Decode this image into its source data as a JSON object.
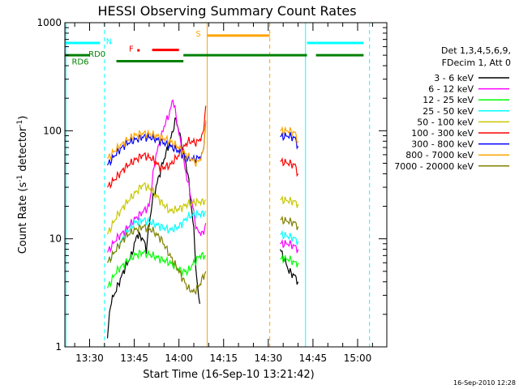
{
  "chart_data": {
    "type": "line",
    "title": "HESSI Observing Summary Count Rates",
    "xlabel": "Start Time (16-Sep-10 13:21:42)",
    "ylabel_main": "Count Rate (s",
    "ylabel_sup1": "-1",
    "ylabel_mid": " detector",
    "ylabel_sup2": "-1",
    "ylabel_end": ")",
    "y_scale": "log",
    "ylim": [
      1,
      1000
    ],
    "xlim_minutes": [
      -8.3,
      99.8
    ],
    "x_ticks": [
      {
        "label": "13:30",
        "minute": 0
      },
      {
        "label": "13:45",
        "minute": 15
      },
      {
        "label": "14:00",
        "minute": 30
      },
      {
        "label": "14:15",
        "minute": 45
      },
      {
        "label": "14:30",
        "minute": 60
      },
      {
        "label": "14:45",
        "minute": 75
      },
      {
        "label": "15:00",
        "minute": 90
      }
    ],
    "y_ticks": [
      {
        "label": "1",
        "value": 1
      },
      {
        "label": "10",
        "value": 10
      },
      {
        "label": "100",
        "value": 100
      },
      {
        "label": "1000",
        "value": 1000
      }
    ],
    "legend": {
      "placement": "right",
      "header1": "Det 1,3,4,5,6,9,",
      "header2": "FDecim 1, Att 0"
    },
    "series": [
      {
        "name": "3 - 6 keV",
        "color": "#000000",
        "points": [
          [
            6,
            1.2
          ],
          [
            7,
            2.5
          ],
          [
            10,
            4
          ],
          [
            12,
            5.5
          ],
          [
            14,
            7
          ],
          [
            16,
            11
          ],
          [
            18,
            10
          ],
          [
            19,
            8
          ],
          [
            21,
            22
          ],
          [
            24,
            45
          ],
          [
            27,
            80
          ],
          [
            29,
            130
          ],
          [
            31,
            75
          ],
          [
            33,
            40
          ],
          [
            35,
            12
          ],
          [
            36,
            4
          ],
          [
            37,
            2.5
          ]
        ],
        "points2": [
          [
            64,
            8
          ],
          [
            67,
            5
          ],
          [
            69,
            4.5
          ],
          [
            70,
            4
          ]
        ]
      },
      {
        "name": "6 - 12 keV",
        "color": "#ff00ff",
        "points": [
          [
            6,
            7.5
          ],
          [
            9,
            10
          ],
          [
            12,
            12
          ],
          [
            15,
            15
          ],
          [
            18,
            18
          ],
          [
            20,
            20
          ],
          [
            22,
            55
          ],
          [
            25,
            110
          ],
          [
            27,
            150
          ],
          [
            28,
            200
          ],
          [
            30,
            95
          ],
          [
            32,
            45
          ],
          [
            34,
            25
          ],
          [
            36,
            12
          ],
          [
            38,
            11
          ],
          [
            39,
            14
          ]
        ],
        "points2": [
          [
            64,
            9
          ],
          [
            67,
            9
          ],
          [
            69,
            8.5
          ],
          [
            70,
            8
          ]
        ]
      },
      {
        "name": "12 - 25 keV",
        "color": "#00ff00",
        "points": [
          [
            6,
            3.5
          ],
          [
            9,
            5
          ],
          [
            12,
            6
          ],
          [
            15,
            7
          ],
          [
            18,
            7.5
          ],
          [
            21,
            7
          ],
          [
            24,
            6.5
          ],
          [
            27,
            6
          ],
          [
            29,
            5.5
          ],
          [
            31,
            5
          ],
          [
            33,
            5
          ],
          [
            35,
            6
          ],
          [
            37,
            7
          ],
          [
            39,
            7
          ]
        ],
        "points2": [
          [
            64,
            6.5
          ],
          [
            67,
            6.5
          ],
          [
            69,
            6
          ],
          [
            70,
            6
          ]
        ]
      },
      {
        "name": "25 - 50 keV",
        "color": "#00ffff",
        "points": [
          [
            6,
            6
          ],
          [
            9,
            8
          ],
          [
            12,
            11
          ],
          [
            15,
            14
          ],
          [
            18,
            15
          ],
          [
            21,
            14
          ],
          [
            24,
            13
          ],
          [
            27,
            12
          ],
          [
            30,
            13
          ],
          [
            33,
            16
          ],
          [
            36,
            17
          ],
          [
            38,
            17
          ],
          [
            39,
            18
          ]
        ],
        "points2": [
          [
            64,
            11
          ],
          [
            67,
            10.5
          ],
          [
            69,
            10
          ],
          [
            70,
            9.5
          ]
        ]
      },
      {
        "name": "50 - 100 keV",
        "color": "#c8c800",
        "points": [
          [
            6,
            11
          ],
          [
            9,
            16
          ],
          [
            12,
            21
          ],
          [
            15,
            26
          ],
          [
            18,
            32
          ],
          [
            21,
            28
          ],
          [
            24,
            22
          ],
          [
            27,
            18
          ],
          [
            30,
            19
          ],
          [
            33,
            21
          ],
          [
            36,
            22
          ],
          [
            38,
            22
          ],
          [
            39,
            23
          ]
        ],
        "points2": [
          [
            64,
            23
          ],
          [
            67,
            22.5
          ],
          [
            69,
            22
          ],
          [
            70,
            21
          ]
        ]
      },
      {
        "name": "100 - 300 keV",
        "color": "#ff0000",
        "points": [
          [
            6,
            30
          ],
          [
            9,
            37
          ],
          [
            12,
            46
          ],
          [
            15,
            53
          ],
          [
            18,
            60
          ],
          [
            21,
            55
          ],
          [
            24,
            45
          ],
          [
            27,
            48
          ],
          [
            30,
            60
          ],
          [
            33,
            80
          ],
          [
            36,
            78
          ],
          [
            38,
            90
          ],
          [
            39,
            170
          ]
        ],
        "points2": [
          [
            64,
            52
          ],
          [
            67,
            50
          ],
          [
            69,
            48
          ],
          [
            70,
            40
          ]
        ]
      },
      {
        "name": "300 - 800 keV",
        "color": "#0000ff",
        "points": [
          [
            6,
            48
          ],
          [
            9,
            62
          ],
          [
            12,
            75
          ],
          [
            15,
            82
          ],
          [
            18,
            88
          ],
          [
            21,
            86
          ],
          [
            24,
            80
          ],
          [
            27,
            72
          ],
          [
            30,
            65
          ],
          [
            33,
            55
          ],
          [
            36,
            55
          ],
          [
            38,
            60
          ],
          [
            39,
            120
          ]
        ],
        "points2": [
          [
            64,
            88
          ],
          [
            67,
            90
          ],
          [
            69,
            85
          ],
          [
            70,
            72
          ]
        ]
      },
      {
        "name": "800 - 7000 keV",
        "color": "#ffa500",
        "points": [
          [
            6,
            55
          ],
          [
            9,
            68
          ],
          [
            12,
            80
          ],
          [
            15,
            90
          ],
          [
            18,
            95
          ],
          [
            21,
            92
          ],
          [
            24,
            87
          ],
          [
            27,
            80
          ],
          [
            30,
            70
          ],
          [
            33,
            58
          ],
          [
            36,
            50
          ],
          [
            38,
            60
          ],
          [
            39,
            125
          ]
        ],
        "points2": [
          [
            64,
            100
          ],
          [
            67,
            100
          ],
          [
            69,
            95
          ],
          [
            70,
            80
          ]
        ]
      },
      {
        "name": "7000 - 20000 keV",
        "color": "#808000",
        "points": [
          [
            6,
            6
          ],
          [
            9,
            8
          ],
          [
            12,
            10.5
          ],
          [
            15,
            12
          ],
          [
            18,
            13
          ],
          [
            21,
            12
          ],
          [
            24,
            10
          ],
          [
            27,
            7
          ],
          [
            30,
            5
          ],
          [
            33,
            3.5
          ],
          [
            35,
            3.2
          ],
          [
            37,
            3.8
          ],
          [
            39,
            5
          ]
        ],
        "points2": [
          [
            64,
            15
          ],
          [
            67,
            14.5
          ],
          [
            69,
            14
          ],
          [
            70,
            13
          ]
        ]
      }
    ],
    "flag_bars": [
      {
        "label": "N",
        "color": "#00ffff",
        "value": 650,
        "segments": [
          [
            -8.3,
            3.5
          ],
          [
            73,
            92
          ]
        ]
      },
      {
        "label": "S",
        "color": "#ffa500",
        "value": 760,
        "segments": [
          [
            39.5,
            60.5
          ]
        ]
      },
      {
        "label": "F",
        "color": "#ff0000",
        "value": 560,
        "segments": [
          [
            21,
            30
          ]
        ]
      },
      {
        "label": "RD0",
        "color": "#008000",
        "value": 500,
        "segments": [
          [
            -8.3,
            0
          ],
          [
            31.5,
            60.5
          ],
          [
            60.5,
            73
          ],
          [
            76,
            92
          ]
        ]
      },
      {
        "label": "RD6",
        "color": "#008000",
        "value": 440,
        "segments": [
          [
            9,
            31.5
          ]
        ]
      }
    ],
    "vertical_lines": [
      {
        "name": "day-start",
        "color": "#00ffff",
        "style": "solid",
        "minute": -8
      },
      {
        "name": "eclipse-end",
        "color": "#00ffff",
        "style": "dashed",
        "minute": 5
      },
      {
        "name": "saa-start",
        "color": "#ffa500",
        "style": "solid",
        "minute": 39.5
      },
      {
        "name": "saa-end",
        "color": "#ffa500",
        "style": "dashed",
        "minute": 60.5
      },
      {
        "name": "night-start",
        "color": "#00ffff",
        "style": "solid",
        "minute": 72.5
      },
      {
        "name": "night-end",
        "color": "#00ffff",
        "style": "dashed",
        "minute": 94
      }
    ]
  },
  "footer": {
    "timestamp": "16-Sep-2010 12:28"
  },
  "colors": {
    "background": "#ffffff",
    "axes": "#000000"
  }
}
